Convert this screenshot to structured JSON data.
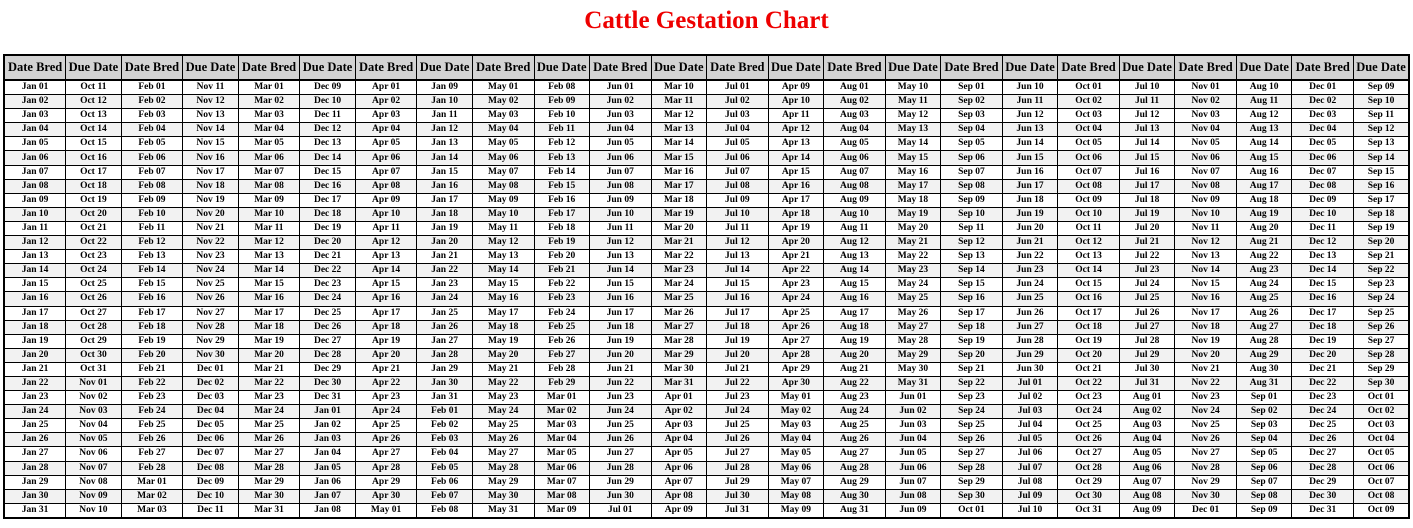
{
  "title": "Cattle Gestation Chart",
  "colors": {
    "title_red": "#ee0000",
    "header_bg": "#d3d3d3",
    "row_stripe": "#f2f2f2",
    "border": "#000000"
  },
  "chart_data": {
    "type": "table",
    "title": "Cattle Gestation Chart",
    "columns": [
      "Date Bred",
      "Due Date",
      "Date Bred",
      "Due Date",
      "Date Bred",
      "Due Date",
      "Date Bred",
      "Due Date",
      "Date Bred",
      "Due Date",
      "Date Bred",
      "Due Date",
      "Date Bred",
      "Due Date",
      "Date Bred",
      "Due Date",
      "Date Bred",
      "Due Date",
      "Date Bred",
      "Due Date",
      "Date Bred",
      "Due Date",
      "Date Bred",
      "Due Date"
    ],
    "rows": [
      [
        "Jan 01",
        "Oct 11",
        "Feb 01",
        "Nov 11",
        "Mar 01",
        "Dec 09",
        "Apr 01",
        "Jan 09",
        "May 01",
        "Feb 08",
        "Jun 01",
        "Mar 10",
        "Jul 01",
        "Apr 09",
        "Aug 01",
        "May 10",
        "Sep 01",
        "Jun 10",
        "Oct 01",
        "Jul 10",
        "Nov 01",
        "Aug 10",
        "Dec 01",
        "Sep 09"
      ],
      [
        "Jan 02",
        "Oct 12",
        "Feb 02",
        "Nov 12",
        "Mar 02",
        "Dec 10",
        "Apr 02",
        "Jan 10",
        "May 02",
        "Feb 09",
        "Jun 02",
        "Mar 11",
        "Jul 02",
        "Apr 10",
        "Aug 02",
        "May 11",
        "Sep 02",
        "Jun 11",
        "Oct 02",
        "Jul 11",
        "Nov 02",
        "Aug 11",
        "Dec 02",
        "Sep 10"
      ],
      [
        "Jan 03",
        "Oct 13",
        "Feb 03",
        "Nov 13",
        "Mar 03",
        "Dec 11",
        "Apr 03",
        "Jan 11",
        "May 03",
        "Feb 10",
        "Jun 03",
        "Mar 12",
        "Jul 03",
        "Apr 11",
        "Aug 03",
        "May 12",
        "Sep 03",
        "Jun 12",
        "Oct 03",
        "Jul 12",
        "Nov 03",
        "Aug 12",
        "Dec 03",
        "Sep 11"
      ],
      [
        "Jan 04",
        "Oct 14",
        "Feb 04",
        "Nov 14",
        "Mar 04",
        "Dec 12",
        "Apr 04",
        "Jan 12",
        "May 04",
        "Feb 11",
        "Jun 04",
        "Mar 13",
        "Jul 04",
        "Apr 12",
        "Aug 04",
        "May 13",
        "Sep 04",
        "Jun 13",
        "Oct 04",
        "Jul 13",
        "Nov 04",
        "Aug 13",
        "Dec 04",
        "Sep 12"
      ],
      [
        "Jan 05",
        "Oct 15",
        "Feb 05",
        "Nov 15",
        "Mar 05",
        "Dec 13",
        "Apr 05",
        "Jan 13",
        "May 05",
        "Feb 12",
        "Jun 05",
        "Mar 14",
        "Jul 05",
        "Apr 13",
        "Aug 05",
        "May 14",
        "Sep 05",
        "Jun 14",
        "Oct 05",
        "Jul 14",
        "Nov 05",
        "Aug 14",
        "Dec 05",
        "Sep 13"
      ],
      [
        "Jan 06",
        "Oct 16",
        "Feb 06",
        "Nov 16",
        "Mar 06",
        "Dec 14",
        "Apr 06",
        "Jan 14",
        "May 06",
        "Feb 13",
        "Jun 06",
        "Mar 15",
        "Jul 06",
        "Apr 14",
        "Aug 06",
        "May 15",
        "Sep 06",
        "Jun 15",
        "Oct 06",
        "Jul 15",
        "Nov 06",
        "Aug 15",
        "Dec 06",
        "Sep 14"
      ],
      [
        "Jan 07",
        "Oct 17",
        "Feb 07",
        "Nov 17",
        "Mar 07",
        "Dec 15",
        "Apr 07",
        "Jan 15",
        "May 07",
        "Feb 14",
        "Jun 07",
        "Mar 16",
        "Jul 07",
        "Apr 15",
        "Aug 07",
        "May 16",
        "Sep 07",
        "Jun 16",
        "Oct 07",
        "Jul 16",
        "Nov 07",
        "Aug 16",
        "Dec 07",
        "Sep 15"
      ],
      [
        "Jan 08",
        "Oct 18",
        "Feb 08",
        "Nov 18",
        "Mar 08",
        "Dec 16",
        "Apr 08",
        "Jan 16",
        "May 08",
        "Feb 15",
        "Jun 08",
        "Mar 17",
        "Jul 08",
        "Apr 16",
        "Aug 08",
        "May 17",
        "Sep 08",
        "Jun 17",
        "Oct 08",
        "Jul 17",
        "Nov 08",
        "Aug 17",
        "Dec 08",
        "Sep 16"
      ],
      [
        "Jan 09",
        "Oct 19",
        "Feb 09",
        "Nov 19",
        "Mar 09",
        "Dec 17",
        "Apr 09",
        "Jan 17",
        "May 09",
        "Feb 16",
        "Jun 09",
        "Mar 18",
        "Jul 09",
        "Apr 17",
        "Aug 09",
        "May 18",
        "Sep 09",
        "Jun 18",
        "Oct 09",
        "Jul 18",
        "Nov 09",
        "Aug 18",
        "Dec 09",
        "Sep 17"
      ],
      [
        "Jan 10",
        "Oct 20",
        "Feb 10",
        "Nov 20",
        "Mar 10",
        "Dec 18",
        "Apr 10",
        "Jan 18",
        "May 10",
        "Feb 17",
        "Jun 10",
        "Mar 19",
        "Jul 10",
        "Apr 18",
        "Aug 10",
        "May 19",
        "Sep 10",
        "Jun 19",
        "Oct 10",
        "Jul 19",
        "Nov 10",
        "Aug 19",
        "Dec 10",
        "Sep 18"
      ],
      [
        "Jan 11",
        "Oct 21",
        "Feb 11",
        "Nov 21",
        "Mar 11",
        "Dec 19",
        "Apr 11",
        "Jan 19",
        "May 11",
        "Feb 18",
        "Jun 11",
        "Mar 20",
        "Jul 11",
        "Apr 19",
        "Aug 11",
        "May 20",
        "Sep 11",
        "Jun 20",
        "Oct 11",
        "Jul 20",
        "Nov 11",
        "Aug 20",
        "Dec 11",
        "Sep 19"
      ],
      [
        "Jan 12",
        "Oct 22",
        "Feb 12",
        "Nov 22",
        "Mar 12",
        "Dec 20",
        "Apr 12",
        "Jan 20",
        "May 12",
        "Feb 19",
        "Jun 12",
        "Mar 21",
        "Jul 12",
        "Apr 20",
        "Aug 12",
        "May 21",
        "Sep 12",
        "Jun 21",
        "Oct 12",
        "Jul 21",
        "Nov 12",
        "Aug 21",
        "Dec 12",
        "Sep 20"
      ],
      [
        "Jan 13",
        "Oct 23",
        "Feb 13",
        "Nov 23",
        "Mar 13",
        "Dec 21",
        "Apr 13",
        "Jan 21",
        "May 13",
        "Feb 20",
        "Jun 13",
        "Mar 22",
        "Jul 13",
        "Apr 21",
        "Aug 13",
        "May 22",
        "Sep 13",
        "Jun 22",
        "Oct 13",
        "Jul 22",
        "Nov 13",
        "Aug 22",
        "Dec 13",
        "Sep 21"
      ],
      [
        "Jan 14",
        "Oct 24",
        "Feb 14",
        "Nov 24",
        "Mar 14",
        "Dec 22",
        "Apr 14",
        "Jan 22",
        "May 14",
        "Feb 21",
        "Jun 14",
        "Mar 23",
        "Jul 14",
        "Apr 22",
        "Aug 14",
        "May 23",
        "Sep 14",
        "Jun 23",
        "Oct 14",
        "Jul 23",
        "Nov 14",
        "Aug 23",
        "Dec 14",
        "Sep 22"
      ],
      [
        "Jan 15",
        "Oct 25",
        "Feb 15",
        "Nov 25",
        "Mar 15",
        "Dec 23",
        "Apr 15",
        "Jan 23",
        "May 15",
        "Feb 22",
        "Jun 15",
        "Mar 24",
        "Jul 15",
        "Apr 23",
        "Aug 15",
        "May 24",
        "Sep 15",
        "Jun 24",
        "Oct 15",
        "Jul 24",
        "Nov 15",
        "Aug 24",
        "Dec 15",
        "Sep 23"
      ],
      [
        "Jan 16",
        "Oct 26",
        "Feb 16",
        "Nov 26",
        "Mar 16",
        "Dec 24",
        "Apr 16",
        "Jan 24",
        "May 16",
        "Feb 23",
        "Jun 16",
        "Mar 25",
        "Jul 16",
        "Apr 24",
        "Aug 16",
        "May 25",
        "Sep 16",
        "Jun 25",
        "Oct 16",
        "Jul 25",
        "Nov 16",
        "Aug 25",
        "Dec 16",
        "Sep 24"
      ],
      [
        "Jan 17",
        "Oct 27",
        "Feb 17",
        "Nov 27",
        "Mar 17",
        "Dec 25",
        "Apr 17",
        "Jan 25",
        "May 17",
        "Feb 24",
        "Jun 17",
        "Mar 26",
        "Jul 17",
        "Apr 25",
        "Aug 17",
        "May 26",
        "Sep 17",
        "Jun 26",
        "Oct 17",
        "Jul 26",
        "Nov 17",
        "Aug 26",
        "Dec 17",
        "Sep 25"
      ],
      [
        "Jan 18",
        "Oct 28",
        "Feb 18",
        "Nov 28",
        "Mar 18",
        "Dec 26",
        "Apr 18",
        "Jan 26",
        "May 18",
        "Feb 25",
        "Jun 18",
        "Mar 27",
        "Jul 18",
        "Apr 26",
        "Aug 18",
        "May 27",
        "Sep 18",
        "Jun 27",
        "Oct 18",
        "Jul 27",
        "Nov 18",
        "Aug 27",
        "Dec 18",
        "Sep 26"
      ],
      [
        "Jan 19",
        "Oct 29",
        "Feb 19",
        "Nov 29",
        "Mar 19",
        "Dec 27",
        "Apr 19",
        "Jan 27",
        "May 19",
        "Feb 26",
        "Jun 19",
        "Mar 28",
        "Jul 19",
        "Apr 27",
        "Aug 19",
        "May 28",
        "Sep 19",
        "Jun 28",
        "Oct 19",
        "Jul 28",
        "Nov 19",
        "Aug 28",
        "Dec 19",
        "Sep 27"
      ],
      [
        "Jan 20",
        "Oct 30",
        "Feb 20",
        "Nov 30",
        "Mar 20",
        "Dec 28",
        "Apr 20",
        "Jan 28",
        "May 20",
        "Feb 27",
        "Jun 20",
        "Mar 29",
        "Jul 20",
        "Apr 28",
        "Aug 20",
        "May 29",
        "Sep 20",
        "Jun 29",
        "Oct 20",
        "Jul 29",
        "Nov 20",
        "Aug 29",
        "Dec 20",
        "Sep 28"
      ],
      [
        "Jan 21",
        "Oct 31",
        "Feb 21",
        "Dec 01",
        "Mar 21",
        "Dec 29",
        "Apr 21",
        "Jan 29",
        "May 21",
        "Feb 28",
        "Jun 21",
        "Mar 30",
        "Jul 21",
        "Apr 29",
        "Aug 21",
        "May 30",
        "Sep 21",
        "Jun 30",
        "Oct 21",
        "Jul 30",
        "Nov 21",
        "Aug 30",
        "Dec 21",
        "Sep 29"
      ],
      [
        "Jan 22",
        "Nov 01",
        "Feb 22",
        "Dec 02",
        "Mar 22",
        "Dec 30",
        "Apr 22",
        "Jan 30",
        "May 22",
        "Feb 29",
        "Jun 22",
        "Mar 31",
        "Jul 22",
        "Apr 30",
        "Aug 22",
        "May 31",
        "Sep 22",
        "Jul 01",
        "Oct 22",
        "Jul 31",
        "Nov 22",
        "Aug 31",
        "Dec 22",
        "Sep 30"
      ],
      [
        "Jan 23",
        "Nov 02",
        "Feb 23",
        "Dec 03",
        "Mar 23",
        "Dec 31",
        "Apr 23",
        "Jan 31",
        "May 23",
        "Mar 01",
        "Jun 23",
        "Apr 01",
        "Jul 23",
        "May 01",
        "Aug 23",
        "Jun 01",
        "Sep 23",
        "Jul 02",
        "Oct 23",
        "Aug 01",
        "Nov 23",
        "Sep 01",
        "Dec 23",
        "Oct 01"
      ],
      [
        "Jan 24",
        "Nov 03",
        "Feb 24",
        "Dec 04",
        "Mar 24",
        "Jan 01",
        "Apr 24",
        "Feb 01",
        "May 24",
        "Mar 02",
        "Jun 24",
        "Apr 02",
        "Jul 24",
        "May 02",
        "Aug 24",
        "Jun 02",
        "Sep 24",
        "Jul 03",
        "Oct 24",
        "Aug 02",
        "Nov 24",
        "Sep 02",
        "Dec 24",
        "Oct 02"
      ],
      [
        "Jan 25",
        "Nov 04",
        "Feb 25",
        "Dec 05",
        "Mar 25",
        "Jan 02",
        "Apr 25",
        "Feb 02",
        "May 25",
        "Mar 03",
        "Jun 25",
        "Apr 03",
        "Jul 25",
        "May 03",
        "Aug 25",
        "Jun 03",
        "Sep 25",
        "Jul 04",
        "Oct 25",
        "Aug 03",
        "Nov 25",
        "Sep 03",
        "Dec 25",
        "Oct 03"
      ],
      [
        "Jan 26",
        "Nov 05",
        "Feb 26",
        "Dec 06",
        "Mar 26",
        "Jan 03",
        "Apr 26",
        "Feb 03",
        "May 26",
        "Mar 04",
        "Jun 26",
        "Apr 04",
        "Jul 26",
        "May 04",
        "Aug 26",
        "Jun 04",
        "Sep 26",
        "Jul 05",
        "Oct 26",
        "Aug 04",
        "Nov 26",
        "Sep 04",
        "Dec 26",
        "Oct 04"
      ],
      [
        "Jan 27",
        "Nov 06",
        "Feb 27",
        "Dec 07",
        "Mar 27",
        "Jan 04",
        "Apr 27",
        "Feb 04",
        "May 27",
        "Mar 05",
        "Jun 27",
        "Apr 05",
        "Jul 27",
        "May 05",
        "Aug 27",
        "Jun 05",
        "Sep 27",
        "Jul 06",
        "Oct 27",
        "Aug 05",
        "Nov 27",
        "Sep 05",
        "Dec 27",
        "Oct 05"
      ],
      [
        "Jan 28",
        "Nov 07",
        "Feb 28",
        "Dec 08",
        "Mar 28",
        "Jan 05",
        "Apr 28",
        "Feb 05",
        "May 28",
        "Mar 06",
        "Jun 28",
        "Apr 06",
        "Jul 28",
        "May 06",
        "Aug 28",
        "Jun 06",
        "Sep 28",
        "Jul 07",
        "Oct 28",
        "Aug 06",
        "Nov 28",
        "Sep 06",
        "Dec 28",
        "Oct 06"
      ],
      [
        "Jan 29",
        "Nov 08",
        "Mar 01",
        "Dec 09",
        "Mar 29",
        "Jan 06",
        "Apr 29",
        "Feb 06",
        "May 29",
        "Mar 07",
        "Jun 29",
        "Apr 07",
        "Jul 29",
        "May 07",
        "Aug 29",
        "Jun 07",
        "Sep 29",
        "Jul 08",
        "Oct 29",
        "Aug 07",
        "Nov 29",
        "Sep 07",
        "Dec 29",
        "Oct 07"
      ],
      [
        "Jan 30",
        "Nov 09",
        "Mar 02",
        "Dec 10",
        "Mar 30",
        "Jan 07",
        "Apr 30",
        "Feb 07",
        "May 30",
        "Mar 08",
        "Jun 30",
        "Apr 08",
        "Jul 30",
        "May 08",
        "Aug 30",
        "Jun 08",
        "Sep 30",
        "Jul 09",
        "Oct 30",
        "Aug 08",
        "Nov 30",
        "Sep 08",
        "Dec 30",
        "Oct 08"
      ],
      [
        "Jan 31",
        "Nov 10",
        "Mar 03",
        "Dec 11",
        "Mar 31",
        "Jan 08",
        "May 01",
        "Feb 08",
        "May 31",
        "Mar 09",
        "Jul 01",
        "Apr 09",
        "Jul 31",
        "May 09",
        "Aug 31",
        "Jun 09",
        "Oct 01",
        "Jul 10",
        "Oct 31",
        "Aug 09",
        "Dec 01",
        "Sep 09",
        "Dec 31",
        "Oct 09"
      ]
    ]
  }
}
